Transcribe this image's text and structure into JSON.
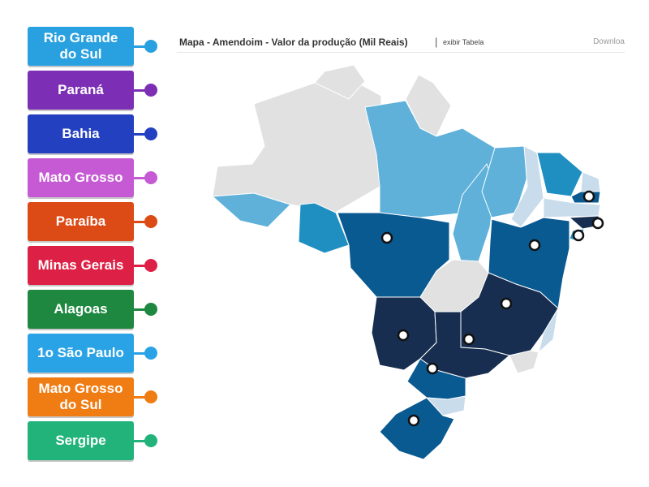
{
  "labels": [
    {
      "text": "Rio Grande\ndo Sul",
      "color": "#29a0e0"
    },
    {
      "text": "Paraná",
      "color": "#7c2fb5"
    },
    {
      "text": "Bahia",
      "color": "#2340c0"
    },
    {
      "text": "Mato Grosso",
      "color": "#c55ad4"
    },
    {
      "text": "Paraíba",
      "color": "#dc4a15"
    },
    {
      "text": "Minas Gerais",
      "color": "#dd2146"
    },
    {
      "text": "Alagoas",
      "color": "#1e8840"
    },
    {
      "text": "1o São Paulo",
      "color": "#2aa3e6"
    },
    {
      "text": "Mato Grosso\ndo Sul",
      "color": "#f07d14"
    },
    {
      "text": "Sergipe",
      "color": "#22b37a"
    }
  ],
  "map": {
    "title": "Mapa - Amendoim - Valor da produção (Mil Reais)",
    "separator": "|",
    "table_link": "exibir Tabela",
    "download_link": "Downloa",
    "colors": {
      "no_data": "#e1e1e1",
      "level_1": "#c9dcec",
      "level_2": "#5fb1da",
      "level_3": "#1f8fc2",
      "level_4": "#0a5a92",
      "level_5": "#172e50",
      "marker_fill": "#ffffff",
      "marker_stroke": "#111111"
    },
    "markers": [
      "Rio Grande do Sul",
      "Paraná",
      "Bahia",
      "Mato Grosso",
      "Paraíba",
      "Minas Gerais",
      "Alagoas",
      "São Paulo",
      "Mato Grosso do Sul",
      "Sergipe"
    ]
  }
}
